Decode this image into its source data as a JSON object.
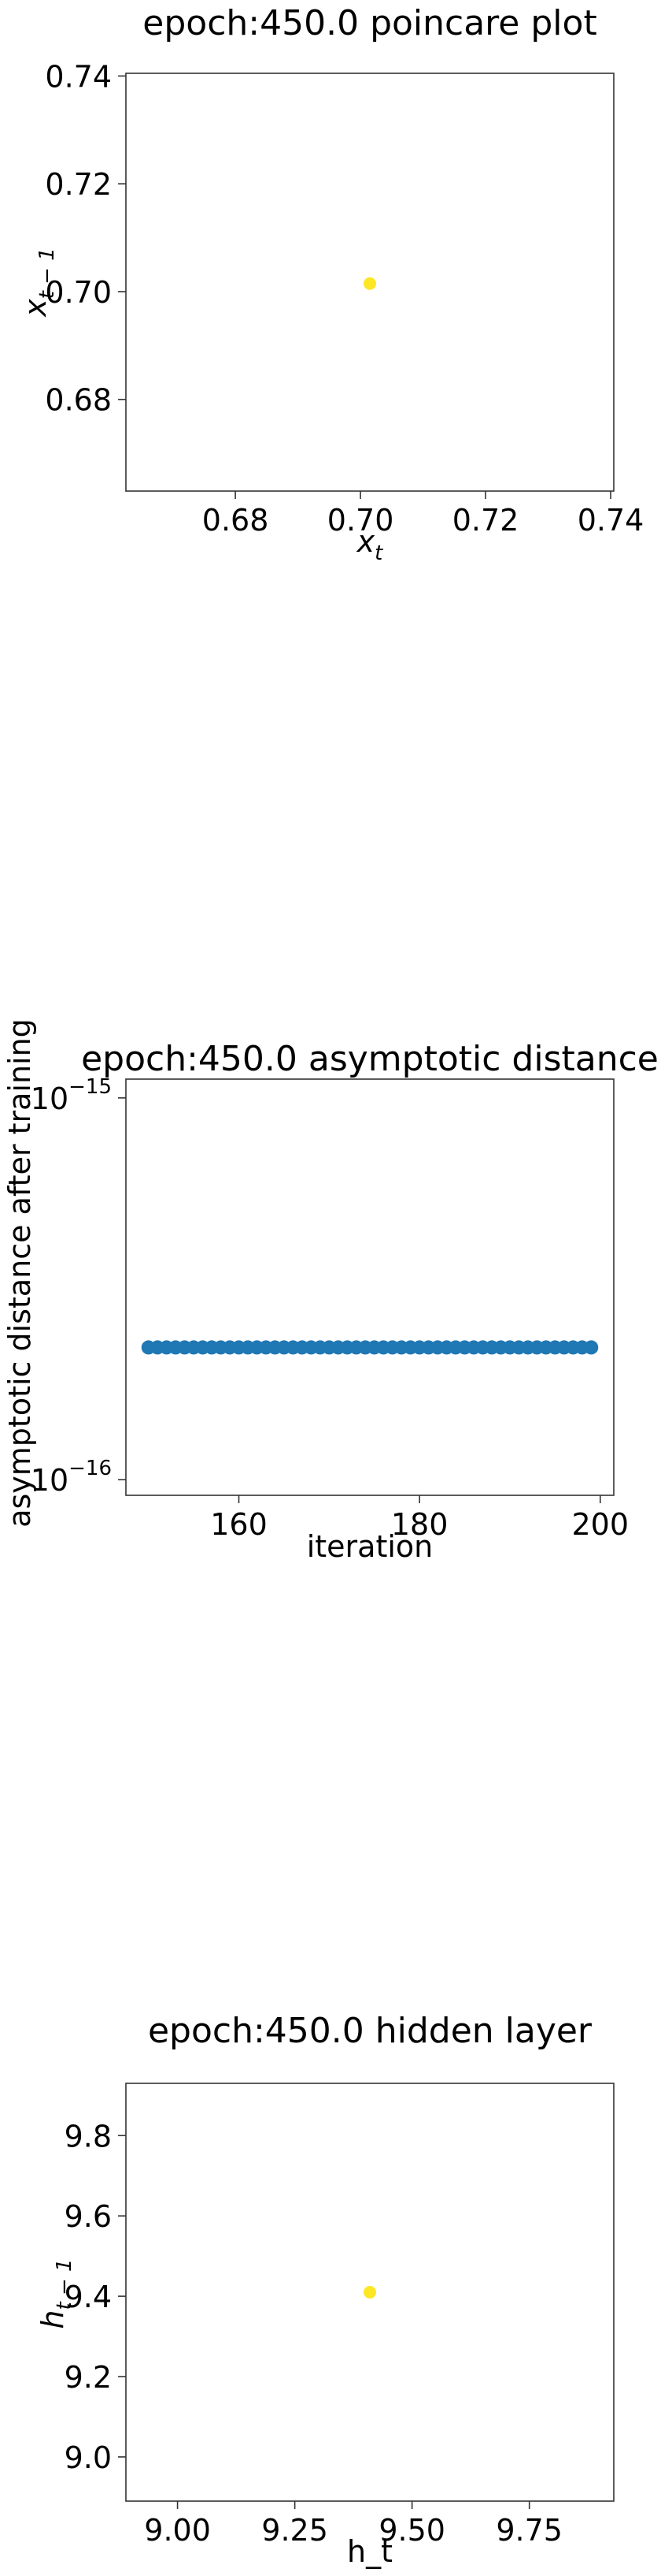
{
  "chart_data": [
    {
      "type": "scatter",
      "title": "epoch:450.0 poincare plot",
      "xlabel": "x_t",
      "ylabel": "x_{t-1}",
      "xlim": [
        0.6625,
        0.7405
      ],
      "ylim": [
        0.663,
        0.7405
      ],
      "xticks": [
        0.68,
        0.7,
        0.72,
        0.74
      ],
      "xtick_labels": [
        "0.68",
        "0.70",
        "0.72",
        "0.74"
      ],
      "yticks": [
        0.68,
        0.7,
        0.72,
        0.74
      ],
      "ytick_labels": [
        "0.68",
        "0.70",
        "0.72",
        "0.74"
      ],
      "points": [
        {
          "x": 0.7015,
          "y": 0.7015
        }
      ],
      "point_color": "#fde725",
      "grid": false
    },
    {
      "type": "scatter",
      "title": "epoch:450.0 asymptotic distance",
      "xlabel": "iteration",
      "ylabel": "asymptotic distance after training",
      "yscale": "log",
      "xlim": [
        147.5,
        201.5
      ],
      "ylim": [
        9.1e-17,
        1.12e-15
      ],
      "xticks": [
        160,
        180,
        200
      ],
      "xtick_labels": [
        "160",
        "180",
        "200"
      ],
      "yticks": [
        1e-16,
        1e-15
      ],
      "ytick_labels": [
        {
          "base": "10",
          "exp": "−16"
        },
        {
          "base": "10",
          "exp": "−15"
        }
      ],
      "x_start": 150,
      "x_end": 199,
      "y_constant": 2.22e-16,
      "point_color": "#1f77b4",
      "grid": false
    },
    {
      "type": "scatter",
      "title": "epoch:450.0 hidden layer",
      "xlabel": "h_t",
      "ylabel": "h_{t-1}",
      "xlim": [
        8.89,
        9.93
      ],
      "ylim": [
        8.89,
        9.93
      ],
      "xticks": [
        9.0,
        9.25,
        9.5,
        9.75
      ],
      "xtick_labels": [
        "9.00",
        "9.25",
        "9.50",
        "9.75"
      ],
      "yticks": [
        9.0,
        9.2,
        9.4,
        9.6,
        9.8
      ],
      "ytick_labels": [
        "9.0",
        "9.2",
        "9.4",
        "9.6",
        "9.8"
      ],
      "points": [
        {
          "x": 9.41,
          "y": 9.41
        }
      ],
      "point_color": "#fde725",
      "grid": false
    }
  ]
}
